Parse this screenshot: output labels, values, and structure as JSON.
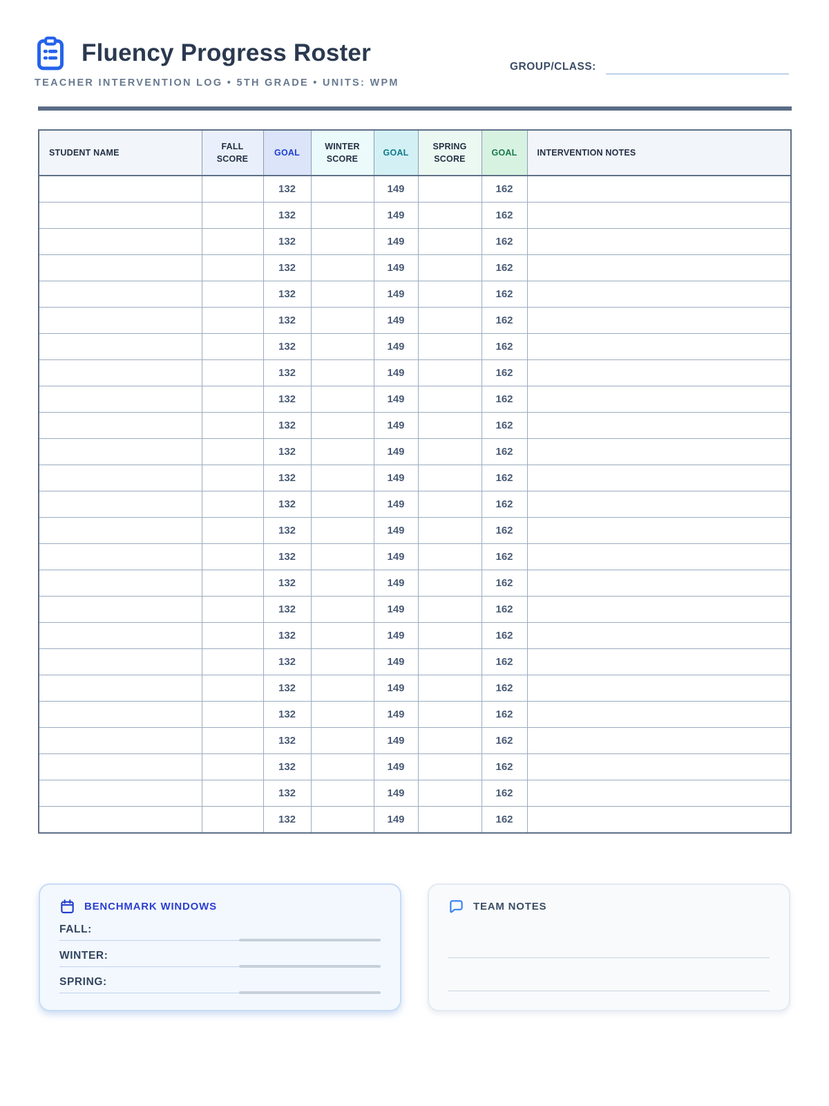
{
  "header": {
    "title": "Fluency Progress Roster",
    "subtitle": "TEACHER INTERVENTION LOG • 5TH GRADE • UNITS: WPM",
    "group_class_label": "GROUP/CLASS:",
    "icon": "clipboard-icon"
  },
  "table": {
    "columns": [
      {
        "id": "student-name",
        "label": "STUDENT NAME"
      },
      {
        "id": "fall-score",
        "label": "FALL SCORE"
      },
      {
        "id": "fall-goal",
        "label": "GOAL"
      },
      {
        "id": "winter-score",
        "label": "WINTER SCORE"
      },
      {
        "id": "winter-goal",
        "label": "GOAL"
      },
      {
        "id": "spring-score",
        "label": "SPRING SCORE"
      },
      {
        "id": "spring-goal",
        "label": "GOAL"
      },
      {
        "id": "intervention-notes",
        "label": "INTERVENTION NOTES"
      }
    ],
    "row_count": 25,
    "goal_values": {
      "fall": "132",
      "winter": "149",
      "spring": "162"
    }
  },
  "benchmark_panel": {
    "icon": "calendar-icon",
    "title": "BENCHMARK WINDOWS",
    "rows": [
      {
        "label": "FALL:"
      },
      {
        "label": "WINTER:"
      },
      {
        "label": "SPRING:"
      }
    ]
  },
  "team_notes_panel": {
    "icon": "speech-bubble-icon",
    "title": "TEAM NOTES",
    "line_count": 2
  },
  "colors": {
    "accent_blue": "#2563eb",
    "rule": "#5b6c85",
    "goal_fall_text": "#1e3fd2",
    "goal_winter_text": "#0f7a8d",
    "goal_spring_text": "#177a4d",
    "goal_fall_bg": "#dbe4f8",
    "goal_winter_bg": "#d3f1f4",
    "goal_spring_bg": "#d8f2e1"
  }
}
